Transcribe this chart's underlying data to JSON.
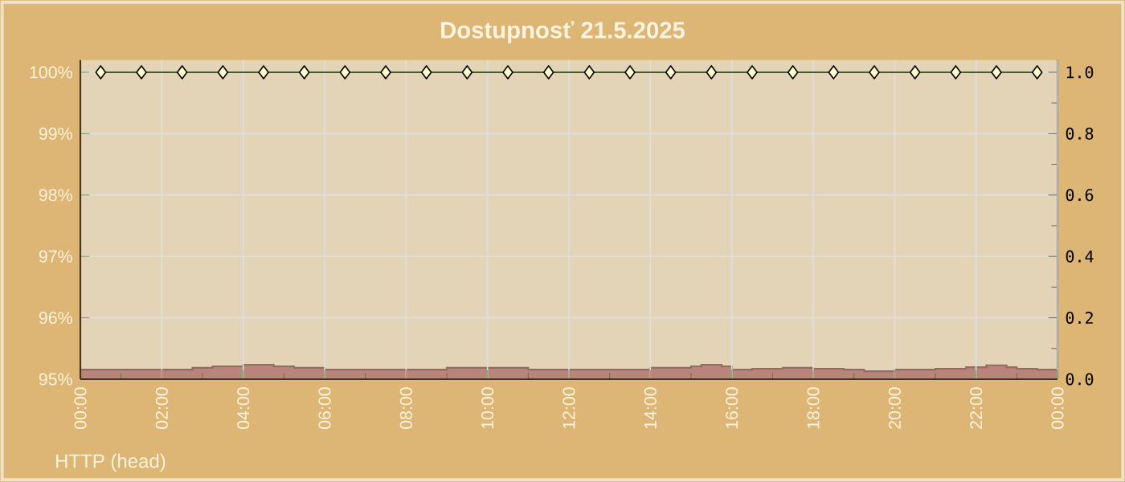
{
  "chart_data": {
    "type": "line",
    "title": "Dostupnosť 21.5.2025",
    "annotations": [
      "HTTP (head)"
    ],
    "xlim": [
      0,
      24
    ],
    "xticks": [
      {
        "value": 0,
        "label": "00:00"
      },
      {
        "value": 2,
        "label": "02:00"
      },
      {
        "value": 4,
        "label": "04:00"
      },
      {
        "value": 6,
        "label": "06:00"
      },
      {
        "value": 8,
        "label": "08:00"
      },
      {
        "value": 10,
        "label": "10:00"
      },
      {
        "value": 12,
        "label": "12:00"
      },
      {
        "value": 14,
        "label": "14:00"
      },
      {
        "value": 16,
        "label": "16:00"
      },
      {
        "value": 18,
        "label": "18:00"
      },
      {
        "value": 20,
        "label": "20:00"
      },
      {
        "value": 22,
        "label": "22:00"
      },
      {
        "value": 24,
        "label": "00:00"
      }
    ],
    "ylim": [
      95,
      100.2
    ],
    "yticks": [
      {
        "value": 95,
        "label": "95%"
      },
      {
        "value": 96,
        "label": "96%"
      },
      {
        "value": 97,
        "label": "97%"
      },
      {
        "value": 98,
        "label": "98%"
      },
      {
        "value": 99,
        "label": "99%"
      },
      {
        "value": 100,
        "label": "100%"
      }
    ],
    "y2lim": [
      0,
      1.04
    ],
    "y2ticks": [
      {
        "value": 0,
        "label": "0.0"
      },
      {
        "value": 0.2,
        "label": "0.2"
      },
      {
        "value": 0.4,
        "label": "0.4"
      },
      {
        "value": 0.6,
        "label": "0.6"
      },
      {
        "value": 0.8,
        "label": "0.8"
      },
      {
        "value": 1,
        "label": "1.0"
      }
    ],
    "grid": true,
    "series": [
      {
        "type": "area",
        "axis": "y2",
        "color": "#b98479",
        "x": [
          0,
          2.75,
          2.75,
          3.25,
          3.25,
          4,
          4,
          4.75,
          4.75,
          5.25,
          5.25,
          6,
          6,
          9,
          9,
          11,
          11,
          14,
          14,
          15,
          15,
          15.25,
          15.25,
          15.75,
          15.75,
          16,
          16,
          16.5,
          16.5,
          17.25,
          17.25,
          18,
          18,
          18.75,
          18.75,
          19.25,
          19.25,
          20,
          20,
          21,
          21,
          21.75,
          21.75,
          22.25,
          22.25,
          22.75,
          22.75,
          23,
          23,
          23.5,
          23.5,
          24
        ],
        "values": [
          0.031,
          0.031,
          0.037,
          0.037,
          0.042,
          0.042,
          0.047,
          0.047,
          0.042,
          0.042,
          0.037,
          0.037,
          0.031,
          0.031,
          0.037,
          0.037,
          0.031,
          0.031,
          0.037,
          0.037,
          0.042,
          0.042,
          0.047,
          0.047,
          0.042,
          0.042,
          0.031,
          0.031,
          0.034,
          0.034,
          0.037,
          0.037,
          0.034,
          0.034,
          0.031,
          0.031,
          0.026,
          0.026,
          0.031,
          0.031,
          0.034,
          0.034,
          0.039,
          0.039,
          0.045,
          0.045,
          0.039,
          0.039,
          0.034,
          0.034,
          0.031,
          0.031
        ]
      },
      {
        "color": "#4b5a2c",
        "marker": "diamond",
        "x": [
          0.5,
          1.5,
          2.5,
          3.5,
          4.5,
          5.5,
          6.5,
          7.5,
          8.5,
          9.5,
          10.5,
          11.5,
          12.5,
          13.5,
          14.5,
          15.5,
          16.5,
          17.5,
          18.5,
          19.5,
          20.5,
          21.5,
          22.5,
          23.5
        ],
        "values": [
          100,
          100,
          100,
          100,
          100,
          100,
          100,
          100,
          100,
          100,
          100,
          100,
          100,
          100,
          100,
          100,
          100,
          100,
          100,
          100,
          100,
          100,
          100,
          100
        ]
      }
    ]
  }
}
